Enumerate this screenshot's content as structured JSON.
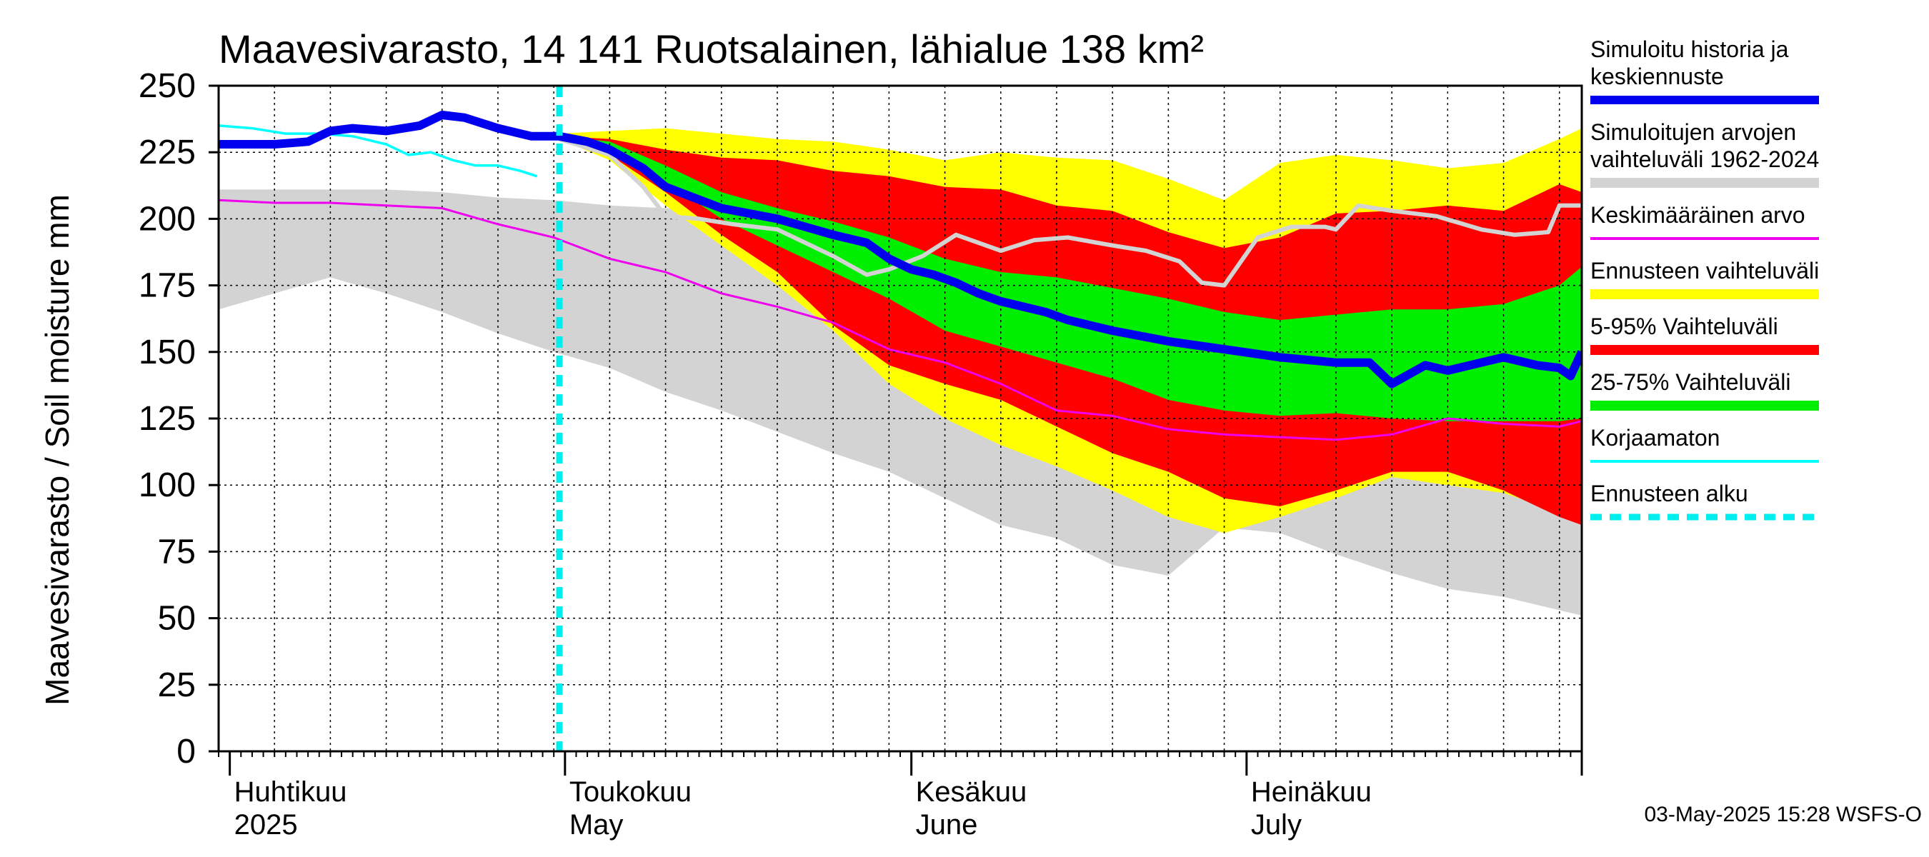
{
  "chart_data": {
    "type": "area",
    "title": "Maavesivarasto, 14 141 Ruotsalainen, lähialue 138 km²",
    "ylabel": "Maavesivarasto / Soil moisture   mm",
    "xlabel": "",
    "ylim": [
      0,
      250
    ],
    "yticks": [
      0,
      25,
      50,
      75,
      100,
      125,
      150,
      175,
      200,
      225,
      250
    ],
    "x_start_day": 0,
    "x_end_day": 122,
    "x_axis_note": "days since 2025-03-31",
    "forecast_start_day": 30.5,
    "month_labels": [
      {
        "day": 1,
        "fi": "Huhtikuu",
        "en": "2025"
      },
      {
        "day": 31,
        "fi": "Toukokuu",
        "en": "May"
      },
      {
        "day": 62,
        "fi": "Kesäkuu",
        "en": "June"
      },
      {
        "day": 92,
        "fi": "Heinäkuu",
        "en": "July"
      }
    ],
    "month_boundaries": [
      1,
      31,
      62,
      92,
      122
    ],
    "grid": true,
    "legend": [
      {
        "key": "history",
        "label1": "Simuloitu historia ja",
        "label2": "keskiennuste",
        "color": "#0000ee",
        "style": "thick"
      },
      {
        "key": "range_hist",
        "label1": "Simuloitujen arvojen",
        "label2": "vaihteluväli 1962-2024",
        "color": "#d3d3d3",
        "style": "band"
      },
      {
        "key": "mean",
        "label1": "Keskimääräinen arvo",
        "label2": "",
        "color": "#ee00ee",
        "style": "line"
      },
      {
        "key": "forecast_range",
        "label1": "Ennusteen vaihteluväli",
        "label2": "",
        "color": "#ffff00",
        "style": "band"
      },
      {
        "key": "p5_95",
        "label1": "5-95% Vaihteluväli",
        "label2": "",
        "color": "#ff0000",
        "style": "band"
      },
      {
        "key": "p25_75",
        "label1": "25-75% Vaihteluväli",
        "label2": "",
        "color": "#00ee00",
        "style": "band"
      },
      {
        "key": "uncorrected",
        "label1": "Korjaamaton",
        "label2": "",
        "color": "#00ffff",
        "style": "line"
      },
      {
        "key": "forecast_start",
        "label1": "Ennusteen alku",
        "label2": "",
        "color": "#00eeee",
        "style": "dash"
      }
    ],
    "series": {
      "hist_range": {
        "x": [
          0,
          5,
          10,
          15,
          20,
          25,
          30,
          35,
          40,
          45,
          50,
          55,
          60,
          65,
          70,
          75,
          80,
          85,
          90,
          95,
          100,
          105,
          110,
          115,
          120,
          122
        ],
        "upper": [
          211,
          211,
          211,
          211,
          210,
          208,
          207,
          205,
          204,
          203,
          201,
          199,
          196,
          194,
          194,
          195,
          195,
          196,
          197,
          197,
          198,
          198,
          199,
          199,
          200,
          200
        ],
        "lower": [
          166,
          172,
          178,
          172,
          165,
          157,
          150,
          144,
          135,
          128,
          120,
          112,
          105,
          95,
          85,
          80,
          70,
          66,
          84,
          82,
          74,
          67,
          61,
          58,
          53,
          51
        ]
      },
      "forecast_range": {
        "x": [
          30.5,
          35,
          40,
          45,
          50,
          55,
          60,
          65,
          70,
          75,
          80,
          85,
          90,
          95,
          100,
          105,
          110,
          115,
          120,
          122
        ],
        "upper": [
          232,
          233,
          234,
          232,
          230,
          229,
          226,
          222,
          225,
          223,
          222,
          215,
          207,
          221,
          224,
          222,
          219,
          221,
          230,
          234
        ],
        "lower": [
          230,
          222,
          205,
          190,
          175,
          158,
          138,
          125,
          115,
          107,
          98,
          88,
          82,
          88,
          95,
          103,
          100,
          97,
          90,
          86
        ]
      },
      "p5_95": {
        "x": [
          30.5,
          35,
          40,
          45,
          50,
          55,
          60,
          65,
          70,
          75,
          80,
          85,
          90,
          95,
          100,
          105,
          110,
          115,
          120,
          122
        ],
        "upper": [
          231,
          230,
          226,
          223,
          222,
          218,
          216,
          212,
          211,
          205,
          203,
          195,
          189,
          193,
          202,
          203,
          205,
          203,
          213,
          210
        ],
        "lower": [
          230,
          224,
          210,
          194,
          180,
          160,
          145,
          138,
          132,
          122,
          112,
          105,
          95,
          92,
          98,
          105,
          105,
          98,
          88,
          85
        ]
      },
      "p25_75": {
        "x": [
          30.5,
          35,
          40,
          45,
          50,
          55,
          60,
          65,
          70,
          75,
          80,
          85,
          90,
          95,
          100,
          105,
          110,
          115,
          120,
          122
        ],
        "upper": [
          231,
          229,
          220,
          210,
          204,
          199,
          193,
          185,
          180,
          178,
          174,
          170,
          165,
          162,
          164,
          166,
          166,
          168,
          175,
          182
        ],
        "lower": [
          230,
          226,
          214,
          200,
          190,
          180,
          170,
          158,
          152,
          146,
          140,
          132,
          128,
          126,
          127,
          125,
          124,
          124,
          124,
          125
        ]
      },
      "median_gray": {
        "x": [
          30.5,
          35,
          38,
          40,
          43,
          46,
          50,
          55,
          58,
          60,
          63,
          66,
          70,
          73,
          76,
          80,
          83,
          86,
          88,
          90,
          93,
          96,
          99,
          100,
          102,
          105,
          109,
          113,
          116,
          119,
          120,
          122
        ],
        "y": [
          230,
          224,
          212,
          201,
          200,
          198,
          196,
          186,
          179,
          181,
          186,
          194,
          188,
          192,
          193,
          190,
          188,
          184,
          176,
          175,
          193,
          197,
          197,
          196,
          205,
          203,
          201,
          196,
          194,
          195,
          205,
          205
        ]
      },
      "mean": {
        "x": [
          0,
          5,
          10,
          15,
          20,
          25,
          30,
          35,
          40,
          45,
          50,
          55,
          60,
          65,
          70,
          75,
          80,
          85,
          90,
          95,
          100,
          105,
          110,
          115,
          120,
          122
        ],
        "y": [
          207,
          206,
          206,
          205,
          204,
          198,
          193,
          185,
          180,
          172,
          167,
          161,
          151,
          146,
          138,
          128,
          126,
          121,
          119,
          118,
          117,
          119,
          125,
          123,
          122,
          124
        ]
      },
      "simulated": {
        "x": [
          0,
          5,
          8,
          10,
          12,
          15,
          18,
          20,
          22,
          25,
          28,
          30.5,
          33,
          35,
          38,
          40,
          45,
          50,
          55,
          58,
          60,
          62,
          64,
          66,
          68,
          70,
          72,
          74,
          76,
          80,
          85,
          90,
          95,
          100,
          103,
          105,
          108,
          110,
          113,
          115,
          118,
          120,
          121,
          122
        ],
        "y": [
          228,
          228,
          229,
          233,
          234,
          233,
          235,
          239,
          238,
          234,
          231,
          231,
          229,
          226,
          219,
          212,
          204,
          200,
          194,
          191,
          185,
          181,
          179,
          176,
          172,
          169,
          167,
          165,
          162,
          158,
          154,
          151,
          148,
          146,
          146,
          138,
          145,
          143,
          146,
          148,
          145,
          144,
          141,
          150
        ]
      },
      "uncorrected": {
        "x": [
          0,
          3,
          6,
          9,
          12,
          15,
          17,
          19,
          21,
          23,
          25,
          27,
          28.5
        ],
        "y": [
          235,
          234,
          232,
          232,
          231,
          228,
          224,
          225,
          222,
          220,
          220,
          218,
          216
        ]
      }
    },
    "timestamp": "03-May-2025 15:28 WSFS-O"
  }
}
